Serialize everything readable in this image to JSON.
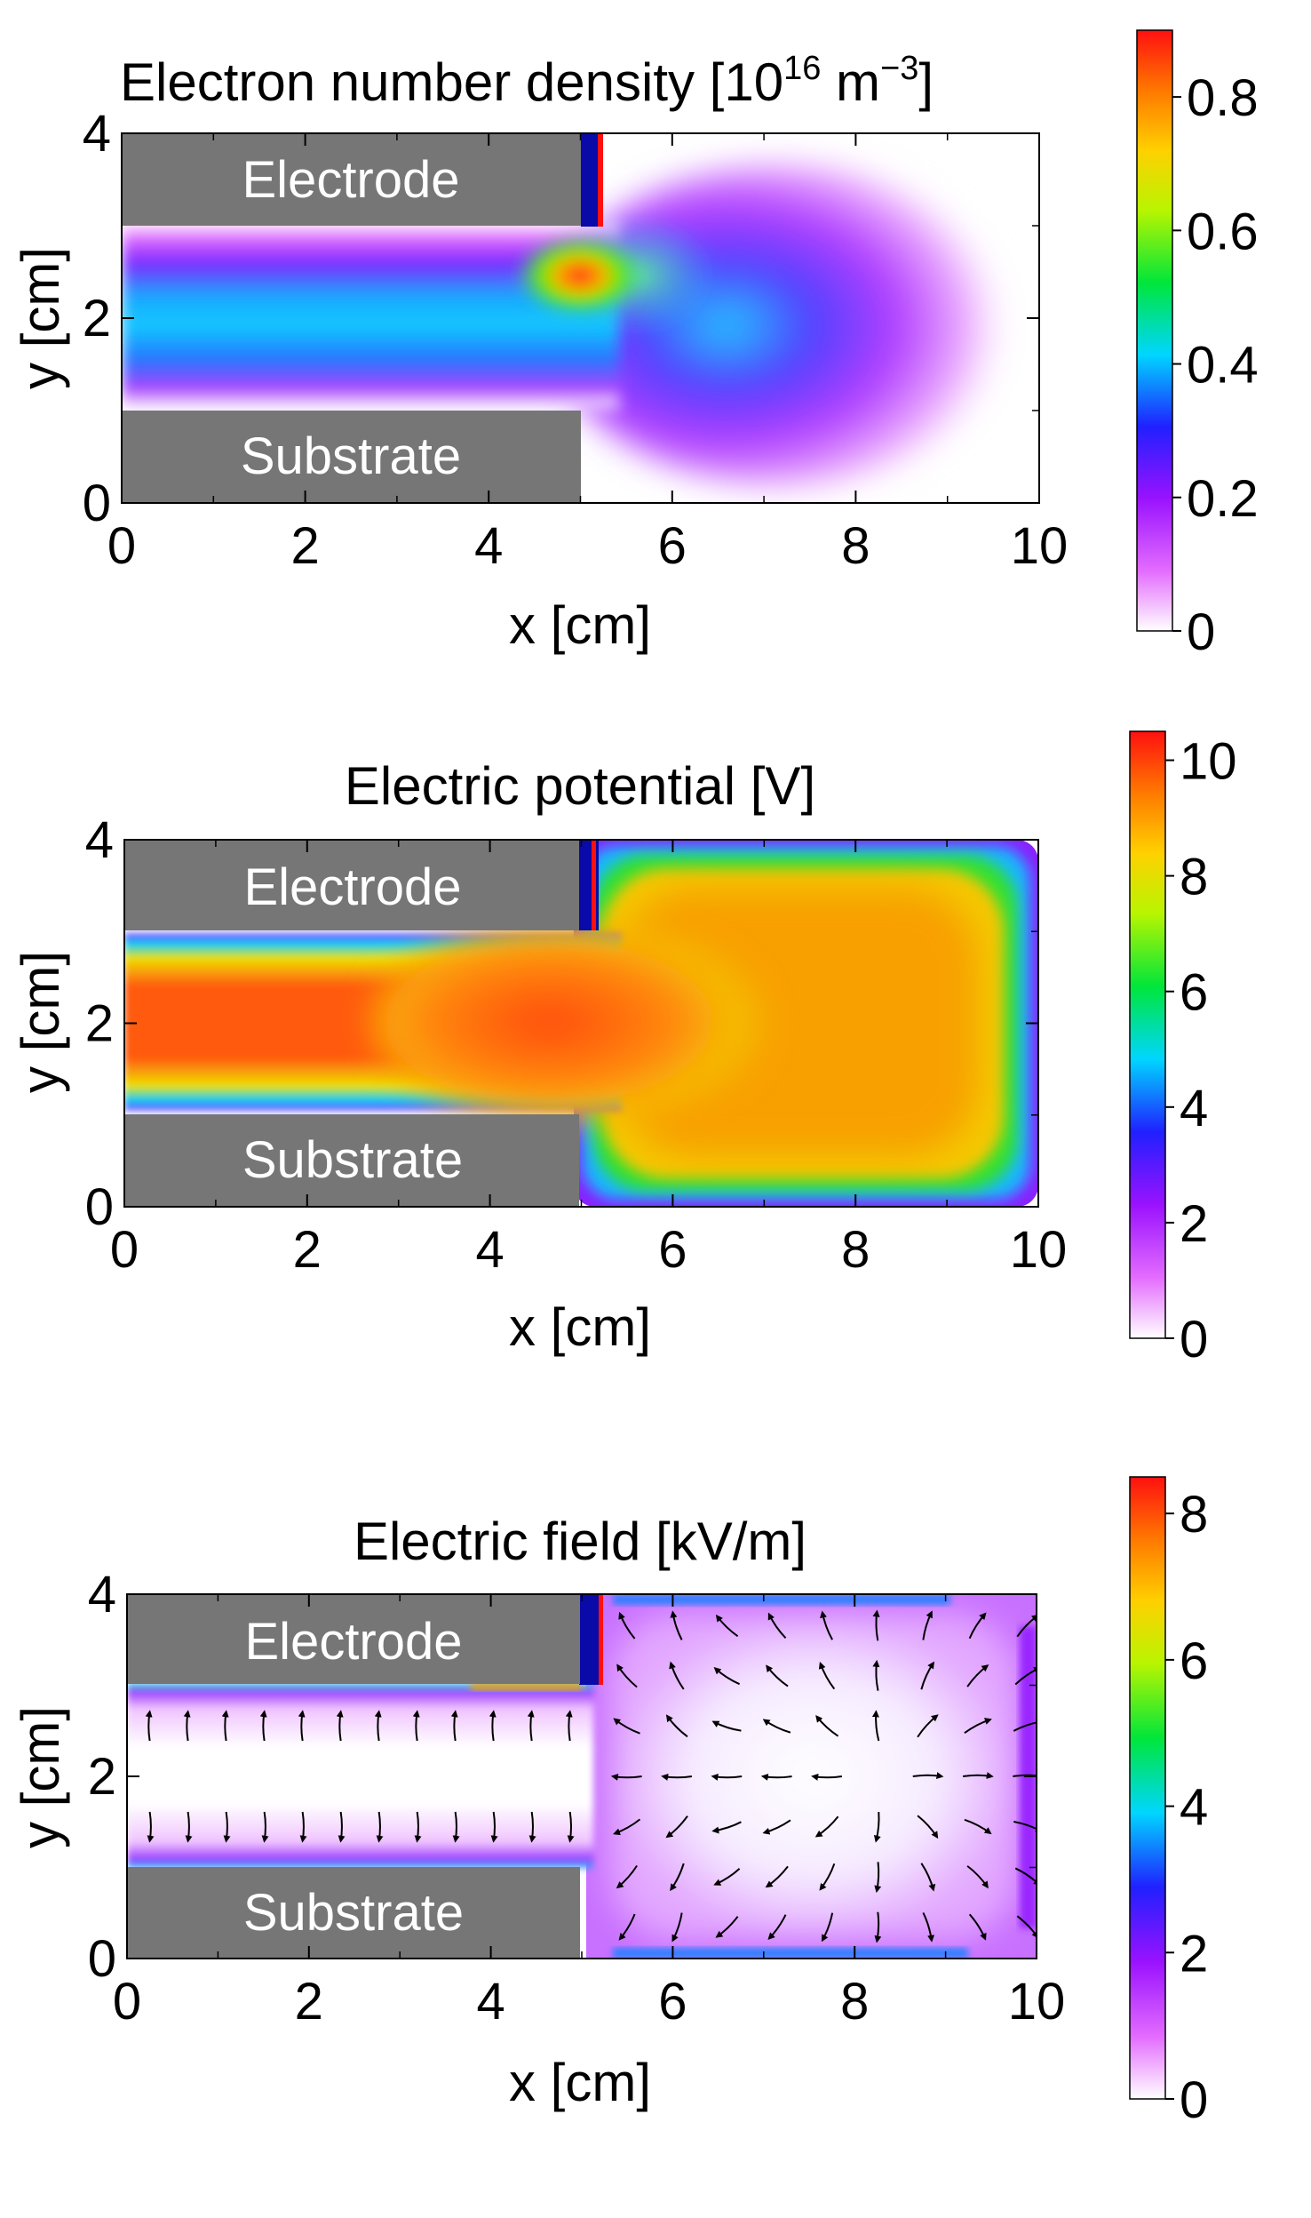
{
  "chart_data": [
    {
      "type": "heatmap",
      "title": "Electron number density [10",
      "title_exp": "16",
      "title_unit": " m",
      "title_unit_exp": "−3",
      "title_close": "]",
      "xlabel": "x [cm]",
      "ylabel": "y [cm]",
      "xlim": [
        0,
        10
      ],
      "ylim": [
        0,
        4
      ],
      "xticks": [
        "0",
        "2",
        "4",
        "6",
        "8",
        "10"
      ],
      "yticks": [
        "0",
        "2",
        "4"
      ],
      "colorbar": {
        "min": 0,
        "max": 0.9,
        "ticks": [
          "0",
          "0.2",
          "0.4",
          "0.6",
          "0.8"
        ]
      },
      "regions": [
        {
          "label": "Electrode",
          "x": [
            0,
            5
          ],
          "y": [
            3,
            4
          ]
        },
        {
          "label": "Substrate",
          "x": [
            0,
            5
          ],
          "y": [
            0,
            1
          ]
        }
      ],
      "grid": false
    },
    {
      "type": "heatmap",
      "title": "Electric potential [V]",
      "xlabel": "x [cm]",
      "ylabel": "y [cm]",
      "xlim": [
        0,
        10
      ],
      "ylim": [
        0,
        4
      ],
      "xticks": [
        "0",
        "2",
        "4",
        "6",
        "8",
        "10"
      ],
      "yticks": [
        "0",
        "2",
        "4"
      ],
      "colorbar": {
        "min": 0,
        "max": 10.5,
        "ticks": [
          "0",
          "2",
          "4",
          "6",
          "8",
          "10"
        ]
      },
      "regions": [
        {
          "label": "Electrode",
          "x": [
            0,
            5
          ],
          "y": [
            3,
            4
          ]
        },
        {
          "label": "Substrate",
          "x": [
            0,
            5
          ],
          "y": [
            0,
            1
          ]
        }
      ],
      "grid": false
    },
    {
      "type": "heatmap",
      "title": "Electric field [kV/m]",
      "xlabel": "x [cm]",
      "ylabel": "y [cm]",
      "xlim": [
        0,
        10
      ],
      "ylim": [
        0,
        4
      ],
      "xticks": [
        "0",
        "2",
        "4",
        "6",
        "8",
        "10"
      ],
      "yticks": [
        "0",
        "2",
        "4"
      ],
      "colorbar": {
        "min": 0,
        "max": 8.5,
        "ticks": [
          "0",
          "2",
          "4",
          "6",
          "8"
        ]
      },
      "regions": [
        {
          "label": "Electrode",
          "x": [
            0,
            5
          ],
          "y": [
            3,
            4
          ]
        },
        {
          "label": "Substrate",
          "x": [
            0,
            5
          ],
          "y": [
            0,
            1
          ]
        }
      ],
      "vector_field": true,
      "grid": false
    }
  ]
}
